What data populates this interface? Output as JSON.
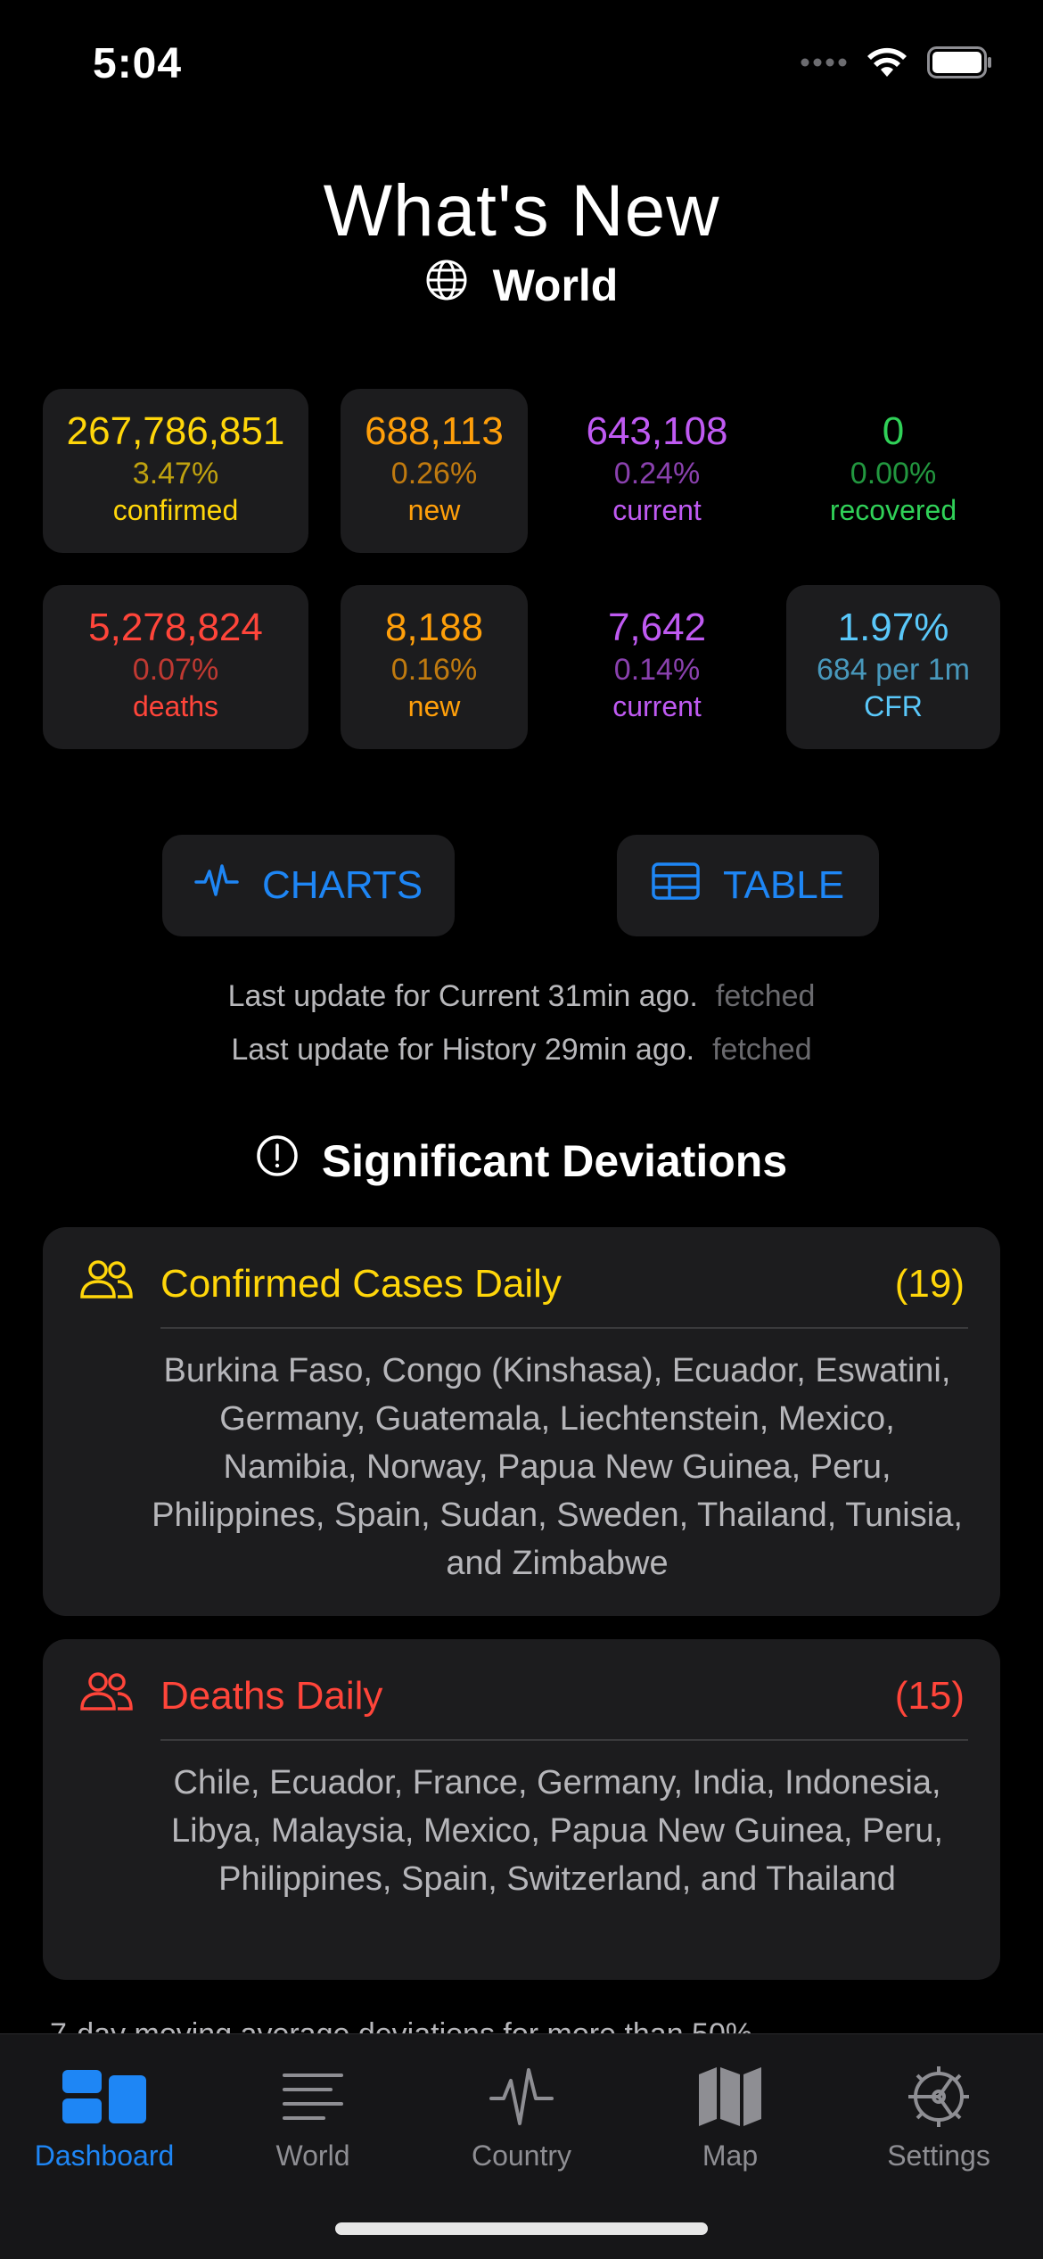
{
  "status_bar": {
    "time": "5:04"
  },
  "header": {
    "title": "What's New",
    "region": "World"
  },
  "stats": {
    "row1": [
      {
        "value": "267,786,851",
        "percent": "3.47%",
        "label": "confirmed",
        "color": "#ffd60a"
      },
      {
        "value": "688,113",
        "percent": "0.26%",
        "label": "new",
        "color": "#ff9f0a"
      },
      {
        "value": "643,108",
        "percent": "0.24%",
        "label": "current",
        "color": "#bf5af2"
      },
      {
        "value": "0",
        "percent": "0.00%",
        "label": "recovered",
        "color": "#30d158"
      }
    ],
    "row2": [
      {
        "value": "5,278,824",
        "percent": "0.07%",
        "label": "deaths",
        "color": "#ff453a"
      },
      {
        "value": "8,188",
        "percent": "0.16%",
        "label": "new",
        "color": "#ff9f0a"
      },
      {
        "value": "7,642",
        "percent": "0.14%",
        "label": "current",
        "color": "#bf5af2"
      },
      {
        "value": "1.97%",
        "percent": "684 per 1m",
        "label": "CFR",
        "color": "#5ac8fa"
      }
    ]
  },
  "buttons": {
    "charts": "CHARTS",
    "table": "TABLE"
  },
  "updates": [
    {
      "text": "Last update for Current 31min ago.",
      "status": "fetched"
    },
    {
      "text": "Last update for History 29min ago.",
      "status": "fetched"
    }
  ],
  "deviations": {
    "title": "Significant Deviations",
    "cards": [
      {
        "name": "Confirmed Cases Daily",
        "count": "(19)",
        "color": "#ffd60a",
        "countries": "Burkina Faso, Congo (Kinshasa), Ecuador, Eswatini, Germany, Guatemala, Liechtenstein, Mexico, Namibia, Norway, Papua New Guinea, Peru, Philippines, Spain, Sudan, Sweden, Thailand, Tunisia, and Zimbabwe"
      },
      {
        "name": "Deaths Daily",
        "count": "(15)",
        "color": "#ff453a",
        "countries": "Chile, Ecuador, France, Germany, India, Indonesia, Libya, Malaysia, Mexico, Papua New Guinea, Peru, Philippines, Spain, Switzerland, and Thailand"
      }
    ],
    "footnote": "7-day moving average deviations for more than 50%"
  },
  "tabbar": {
    "active": "Dashboard",
    "tabs": [
      {
        "label": "Dashboard",
        "icon": "dashboard-icon"
      },
      {
        "label": "World",
        "icon": "list-icon"
      },
      {
        "label": "Country",
        "icon": "waveform-icon"
      },
      {
        "label": "Map",
        "icon": "map-icon"
      },
      {
        "label": "Settings",
        "icon": "gear-icon"
      }
    ]
  },
  "colors": {
    "accent": "#1e86f5",
    "card_bg": "#1c1c1e",
    "background": "#000000"
  }
}
